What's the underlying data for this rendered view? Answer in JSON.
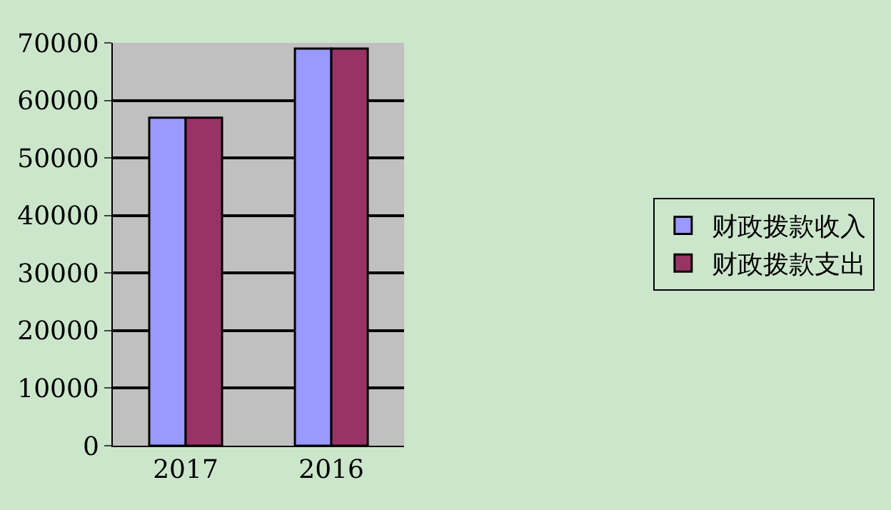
{
  "chart_data": {
    "type": "bar",
    "categories": [
      "2017",
      "2016"
    ],
    "series": [
      {
        "name": "财政拨款收入",
        "color": "#9999ff",
        "values": [
          57000,
          69000
        ]
      },
      {
        "name": "财政拨款支出",
        "color": "#993366",
        "values": [
          57000,
          69000
        ]
      }
    ],
    "ylim": [
      0,
      70000
    ],
    "yticks": [
      0,
      10000,
      20000,
      30000,
      40000,
      50000,
      60000,
      70000
    ],
    "grid": "y",
    "legend": "right"
  }
}
